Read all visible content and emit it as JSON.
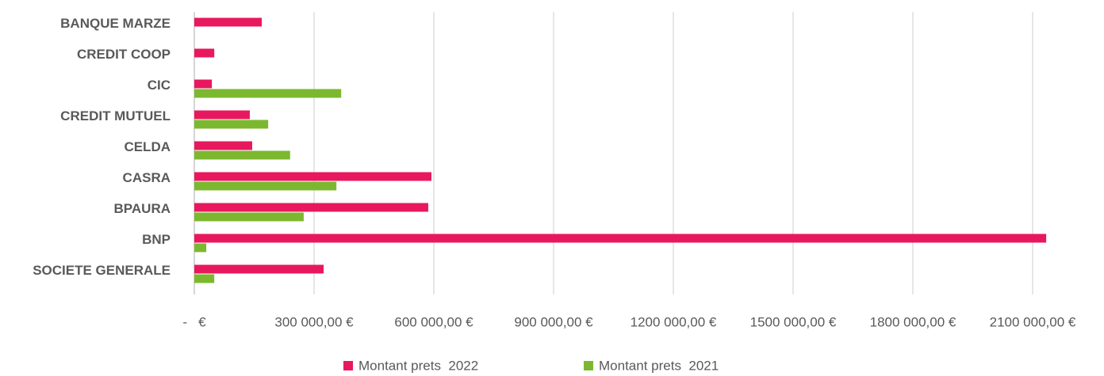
{
  "chart_data": {
    "type": "hbar",
    "categories": [
      "BANQUE MARZE",
      "CREDIT COOP",
      "CIC",
      "CREDIT MUTUEL",
      "CELDA",
      "CASRA",
      "BPAURA",
      "BNP",
      "SOCIETE GENERALE"
    ],
    "series": [
      {
        "name": "Montant prets  2022",
        "color": "#e8185f",
        "values": [
          169000,
          50000,
          44000,
          139000,
          145000,
          594000,
          586000,
          2134000,
          324000
        ]
      },
      {
        "name": "Montant prets  2021",
        "color": "#7cb82f",
        "values": [
          null,
          null,
          368000,
          185000,
          240000,
          356000,
          274000,
          30000,
          50000
        ]
      }
    ],
    "xlim": [
      0,
      2250000
    ],
    "xticks": [
      {
        "value": 0,
        "label": "-   €"
      },
      {
        "value": 300000,
        "label": "300 000,00 €"
      },
      {
        "value": 600000,
        "label": "600 000,00 €"
      },
      {
        "value": 900000,
        "label": "900 000,00 €"
      },
      {
        "value": 1200000,
        "label": "1200 000,00 €"
      },
      {
        "value": 1500000,
        "label": "1500 000,00 €"
      },
      {
        "value": 1800000,
        "label": "1800 000,00 €"
      },
      {
        "value": 2100000,
        "label": "2100 000,00 €"
      }
    ],
    "grid": true,
    "legend": "bottom"
  }
}
